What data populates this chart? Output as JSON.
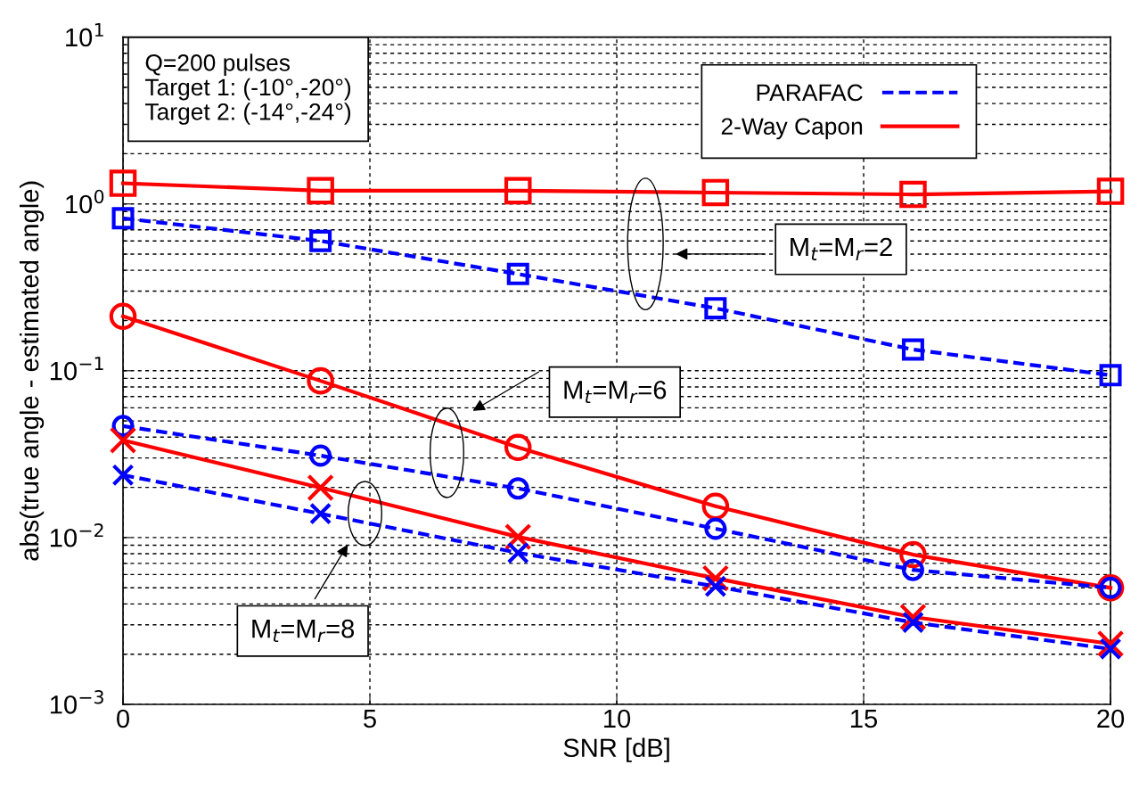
{
  "chart_data": {
    "type": "line",
    "xlabel": "SNR [dB]",
    "ylabel": "abs(true angle - estimated angle)",
    "x": [
      0,
      4,
      8,
      12,
      16,
      20
    ],
    "series": [
      {
        "name": "2-Way Capon",
        "color": "#ff0000",
        "line_style": "solid",
        "marker": "square",
        "values": [
          1.33,
          1.2,
          1.2,
          1.17,
          1.14,
          1.19
        ]
      },
      {
        "name": "PARAFAC",
        "color": "#0000ff",
        "line_style": "dashed",
        "marker": "square",
        "values": [
          0.82,
          0.6,
          0.38,
          0.237,
          0.134,
          0.094
        ]
      },
      {
        "color": "#ff0000",
        "line_style": "solid",
        "marker": "circle",
        "values": [
          0.212,
          0.087,
          0.0347,
          0.0154,
          0.0079,
          0.005
        ]
      },
      {
        "color": "#0000ff",
        "line_style": "dashed",
        "marker": "circle",
        "values": [
          0.0466,
          0.031,
          0.0197,
          0.0113,
          0.0064,
          0.005
        ]
      },
      {
        "color": "#ff0000",
        "line_style": "solid",
        "marker": "cross",
        "values": [
          0.0383,
          0.0199,
          0.0101,
          0.0057,
          0.00334,
          0.00231
        ]
      },
      {
        "color": "#0000ff",
        "line_style": "dashed",
        "marker": "cross",
        "values": [
          0.0237,
          0.0139,
          0.0081,
          0.0051,
          0.0031,
          0.00215
        ]
      }
    ],
    "log": "y",
    "xlim": [
      0,
      20
    ],
    "xticks": [
      0,
      5,
      10,
      15,
      20
    ],
    "ylim": [
      0.001,
      10
    ],
    "yticks": [
      {
        "value": 0.001,
        "label": "10$^{−3}$"
      },
      {
        "value": 0.01,
        "label": "10$^{−2}$"
      },
      {
        "value": 0.1,
        "label": "10$^{−1}$"
      },
      {
        "value": 1,
        "label": "10$^{0}$"
      },
      {
        "value": 10,
        "label": "10$^{1}$"
      }
    ],
    "grid": true,
    "legend": "top right",
    "annotations": [
      "Q=200 pulses\nTarget 1: (-10°,-20°)\nTarget 2: (-14°,-24°)",
      "M$_{t}$=M$_{r}$=2",
      "M$_{t}$=M$_{r}$=6",
      "M$_{t}$=M$_{r}$=8"
    ]
  }
}
